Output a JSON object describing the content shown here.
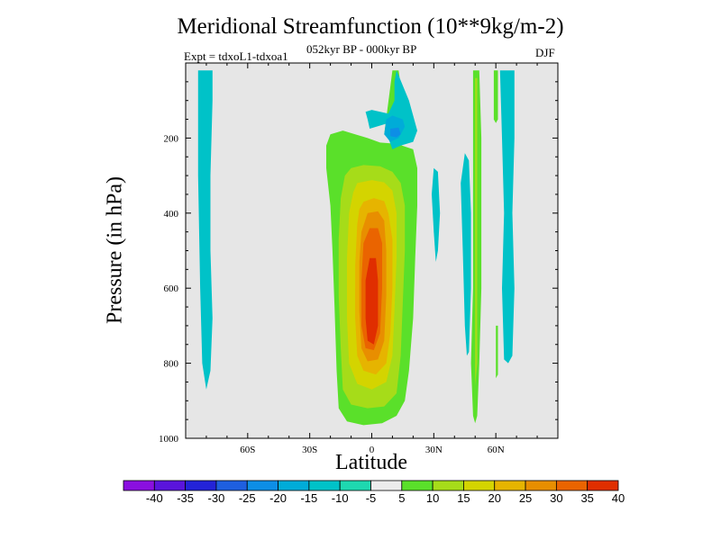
{
  "chart_data": {
    "type": "heatmap",
    "title": "Meridional Streamfunction (10**9kg/m-2)",
    "subtitle": "052kyr BP - 000kyr BP",
    "experiment": "Expt = tdxoL1-tdxoa1",
    "season": "DJF",
    "xlabel": "Latitude",
    "ylabel": "Pressure (in hPa)",
    "xlim": [
      -90,
      90
    ],
    "ylim": [
      1000,
      0
    ],
    "x_ticks": [
      {
        "value": -60,
        "label": "60S"
      },
      {
        "value": -30,
        "label": "30S"
      },
      {
        "value": 0,
        "label": "0"
      },
      {
        "value": 30,
        "label": "30N"
      },
      {
        "value": 60,
        "label": "60N"
      }
    ],
    "y_ticks": [
      {
        "value": 200,
        "label": "200"
      },
      {
        "value": 400,
        "label": "400"
      },
      {
        "value": 600,
        "label": "600"
      },
      {
        "value": 800,
        "label": "800"
      },
      {
        "value": 1000,
        "label": "1000"
      }
    ],
    "background_color": "#e6e6e6",
    "colorbar": {
      "labels": [
        "-40",
        "-35",
        "-30",
        "-25",
        "-20",
        "-15",
        "-10",
        "-5",
        "5",
        "10",
        "15",
        "20",
        "25",
        "30",
        "35",
        "40"
      ],
      "colors": [
        "#8a0fe0",
        "#5a14dc",
        "#2323d8",
        "#1e5fe0",
        "#0d8ee6",
        "#00acd8",
        "#00c2c8",
        "#1ed8b0",
        "#ececec",
        "#5ae02a",
        "#a6dc19",
        "#d4d400",
        "#e6b400",
        "#e88e00",
        "#ea6400",
        "#e02e00"
      ]
    },
    "regions": [
      {
        "level": -10,
        "points": [
          [
            -84,
            20
          ],
          [
            -77,
            20
          ],
          [
            -77,
            100
          ],
          [
            -78,
            300
          ],
          [
            -78,
            500
          ],
          [
            -77,
            680
          ],
          [
            -78,
            820
          ],
          [
            -80,
            870
          ],
          [
            -82,
            800
          ],
          [
            -83,
            600
          ],
          [
            -84,
            300
          ]
        ]
      },
      {
        "level": 5,
        "points": [
          [
            -20,
            190
          ],
          [
            -14,
            180
          ],
          [
            -8,
            190
          ],
          [
            -2,
            200
          ],
          [
            4,
            212
          ],
          [
            12,
            215
          ],
          [
            20,
            230
          ],
          [
            22,
            280
          ],
          [
            22,
            380
          ],
          [
            21,
            520
          ],
          [
            20,
            680
          ],
          [
            18,
            820
          ],
          [
            16,
            900
          ],
          [
            12,
            940
          ],
          [
            5,
            960
          ],
          [
            -4,
            965
          ],
          [
            -12,
            955
          ],
          [
            -16,
            920
          ],
          [
            -17,
            820
          ],
          [
            -18,
            650
          ],
          [
            -19,
            500
          ],
          [
            -20,
            380
          ],
          [
            -22,
            280
          ],
          [
            -22,
            220
          ]
        ]
      },
      {
        "level": 10,
        "points": [
          [
            -10,
            280
          ],
          [
            -4,
            272
          ],
          [
            4,
            275
          ],
          [
            10,
            290
          ],
          [
            14,
            320
          ],
          [
            16,
            380
          ],
          [
            16,
            500
          ],
          [
            15,
            640
          ],
          [
            14,
            780
          ],
          [
            12,
            880
          ],
          [
            6,
            915
          ],
          [
            -2,
            920
          ],
          [
            -10,
            910
          ],
          [
            -14,
            870
          ],
          [
            -15,
            760
          ],
          [
            -16,
            620
          ],
          [
            -16,
            470
          ],
          [
            -15,
            360
          ],
          [
            -13,
            300
          ]
        ]
      },
      {
        "level": 15,
        "points": [
          [
            -7,
            320
          ],
          [
            0,
            312
          ],
          [
            6,
            318
          ],
          [
            10,
            340
          ],
          [
            12,
            400
          ],
          [
            12,
            520
          ],
          [
            11,
            660
          ],
          [
            10,
            780
          ],
          [
            7,
            850
          ],
          [
            0,
            870
          ],
          [
            -7,
            855
          ],
          [
            -11,
            800
          ],
          [
            -12,
            680
          ],
          [
            -12,
            520
          ],
          [
            -11,
            400
          ],
          [
            -9,
            345
          ]
        ]
      },
      {
        "level": 20,
        "points": [
          [
            -4,
            370
          ],
          [
            1,
            360
          ],
          [
            6,
            368
          ],
          [
            8,
            400
          ],
          [
            10,
            470
          ],
          [
            10,
            600
          ],
          [
            9,
            720
          ],
          [
            7,
            800
          ],
          [
            2,
            830
          ],
          [
            -4,
            820
          ],
          [
            -7,
            780
          ],
          [
            -8,
            680
          ],
          [
            -8,
            540
          ],
          [
            -7,
            430
          ],
          [
            -6,
            390
          ]
        ]
      },
      {
        "level": 25,
        "points": [
          [
            -2,
            400
          ],
          [
            3,
            395
          ],
          [
            6,
            420
          ],
          [
            7,
            500
          ],
          [
            7,
            620
          ],
          [
            6,
            740
          ],
          [
            3,
            790
          ],
          [
            -2,
            795
          ],
          [
            -5,
            760
          ],
          [
            -6,
            660
          ],
          [
            -6,
            530
          ],
          [
            -5,
            450
          ]
        ]
      },
      {
        "level": 30,
        "points": [
          [
            -1,
            440
          ],
          [
            3,
            440
          ],
          [
            5,
            480
          ],
          [
            5,
            600
          ],
          [
            4,
            720
          ],
          [
            1,
            765
          ],
          [
            -3,
            760
          ],
          [
            -5,
            700
          ],
          [
            -5,
            580
          ],
          [
            -4,
            480
          ]
        ]
      },
      {
        "level": 35,
        "points": [
          [
            -1,
            520
          ],
          [
            2,
            520
          ],
          [
            3,
            580
          ],
          [
            3,
            700
          ],
          [
            1,
            750
          ],
          [
            -2,
            740
          ],
          [
            -3,
            680
          ],
          [
            -3,
            580
          ]
        ]
      },
      {
        "level": 40,
        "points": [
          [
            -1,
            590
          ],
          [
            1,
            590
          ],
          [
            2,
            640
          ],
          [
            1,
            730
          ],
          [
            -1,
            735
          ],
          [
            -2,
            680
          ],
          [
            -2,
            620
          ]
        ]
      },
      {
        "level": 5,
        "points": [
          [
            10,
            20
          ],
          [
            13,
            20
          ],
          [
            14,
            60
          ],
          [
            15,
            110
          ],
          [
            15,
            150
          ],
          [
            12,
            180
          ],
          [
            6,
            190
          ]
        ]
      },
      {
        "level": -10,
        "points": [
          [
            12,
            20
          ],
          [
            15,
            60
          ],
          [
            18,
            100
          ],
          [
            20,
            140
          ],
          [
            22,
            180
          ],
          [
            20,
            210
          ],
          [
            14,
            220
          ],
          [
            10,
            230
          ],
          [
            8,
            200
          ],
          [
            8,
            160
          ],
          [
            -1,
            175
          ],
          [
            -2,
            150
          ],
          [
            -3,
            130
          ],
          [
            0,
            125
          ],
          [
            8,
            135
          ],
          [
            11,
            100
          ],
          [
            11,
            50
          ]
        ]
      },
      {
        "level": -15,
        "points": [
          [
            7,
            150
          ],
          [
            10,
            140
          ],
          [
            15,
            150
          ],
          [
            16,
            170
          ],
          [
            13,
            200
          ],
          [
            9,
            210
          ],
          [
            6,
            190
          ]
        ]
      },
      {
        "level": -20,
        "points": [
          [
            9,
            175
          ],
          [
            13,
            172
          ],
          [
            14,
            190
          ],
          [
            12,
            198
          ],
          [
            9,
            195
          ]
        ]
      },
      {
        "level": -10,
        "points": [
          [
            30,
            280
          ],
          [
            32,
            290
          ],
          [
            33,
            400
          ],
          [
            32,
            500
          ],
          [
            31,
            530
          ],
          [
            30,
            450
          ],
          [
            29,
            350
          ]
        ]
      },
      {
        "level": -10,
        "points": [
          [
            45,
            240
          ],
          [
            47,
            260
          ],
          [
            48,
            400
          ],
          [
            48,
            600
          ],
          [
            47,
            770
          ],
          [
            46,
            780
          ],
          [
            45,
            700
          ],
          [
            44,
            500
          ],
          [
            43,
            320
          ]
        ]
      },
      {
        "level": 5,
        "points": [
          [
            49,
            20
          ],
          [
            52,
            20
          ],
          [
            53,
            200
          ],
          [
            53,
            400
          ],
          [
            53,
            600
          ],
          [
            52,
            800
          ],
          [
            51,
            940
          ],
          [
            50,
            960
          ],
          [
            49,
            940
          ],
          [
            48,
            800
          ],
          [
            49,
            600
          ],
          [
            49,
            400
          ],
          [
            49,
            200
          ]
        ]
      },
      {
        "level": 10,
        "points": [
          [
            50,
            40
          ],
          [
            51,
            40
          ],
          [
            51,
            400
          ],
          [
            51,
            800
          ],
          [
            50,
            860
          ]
        ]
      },
      {
        "level": 5,
        "points": [
          [
            59,
            20
          ],
          [
            61,
            20
          ],
          [
            61,
            150
          ],
          [
            60,
            160
          ],
          [
            59,
            150
          ]
        ]
      },
      {
        "level": 5,
        "points": [
          [
            60,
            700
          ],
          [
            61,
            700
          ],
          [
            61,
            830
          ],
          [
            60,
            840
          ]
        ]
      },
      {
        "level": -10,
        "points": [
          [
            62,
            20
          ],
          [
            69,
            20
          ],
          [
            69,
            200
          ],
          [
            68,
            400
          ],
          [
            69,
            600
          ],
          [
            68,
            780
          ],
          [
            66,
            800
          ],
          [
            64,
            790
          ],
          [
            63,
            600
          ],
          [
            64,
            400
          ],
          [
            63,
            200
          ]
        ]
      }
    ]
  }
}
